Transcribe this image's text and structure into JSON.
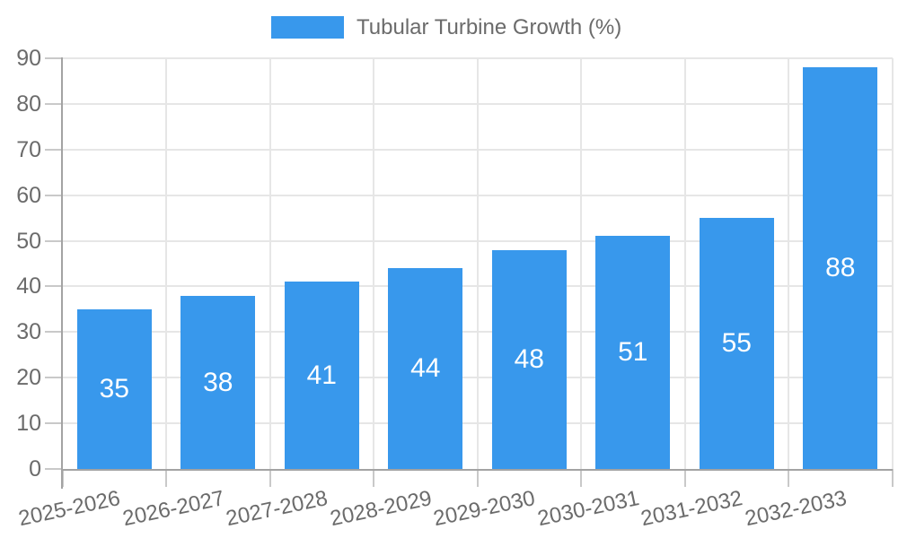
{
  "chart_data": {
    "type": "bar",
    "title": "Tubular Turbine Growth (%)",
    "legend_position": "top",
    "categories": [
      "2025-2026",
      "2026-2027",
      "2027-2028",
      "2028-2029",
      "2029-2030",
      "2030-2031",
      "2031-2032",
      "2032-2033"
    ],
    "series": [
      {
        "name": "Tubular Turbine Growth (%)",
        "values": [
          35,
          38,
          41,
          44,
          48,
          51,
          55,
          88
        ]
      }
    ],
    "value_labels_shown": true,
    "xlabel": "",
    "ylabel": "",
    "ylim": [
      0,
      90
    ],
    "ytick_step": 10,
    "yticks": [
      0,
      10,
      20,
      30,
      40,
      50,
      60,
      70,
      80,
      90
    ],
    "grid": true,
    "x_label_rotation_deg": -12,
    "colors": {
      "bar": "#3898EC",
      "value_text": "#FFFFFF",
      "axis_text": "#6B6B6B",
      "gridline": "#E6E6E6",
      "tick": "#C9C9C9",
      "axis_line": "#A3A3A3",
      "background": "#FFFFFF"
    }
  }
}
